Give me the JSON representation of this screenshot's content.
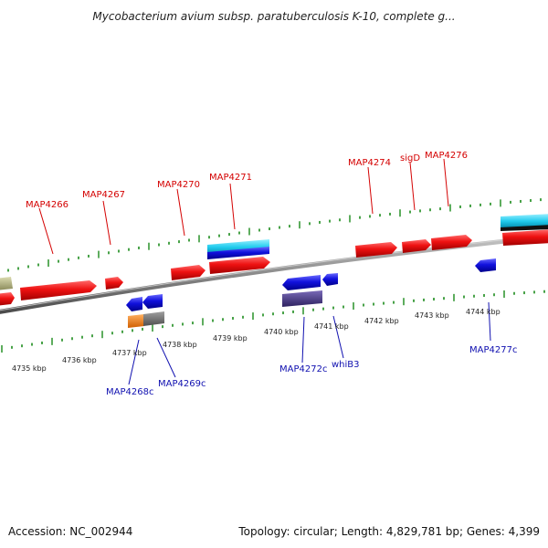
{
  "title": "Mycobacterium avium subsp. paratuberculosis K-10, complete g...",
  "footer": {
    "accession": "Accession: NC_002944",
    "topology": "Topology: circular; Length: 4,829,781 bp; Genes: 4,399"
  },
  "scale_labels": [
    "4735 kbp",
    "4736 kbp",
    "4737 kbp",
    "4738 kbp",
    "4739 kbp",
    "4740 kbp",
    "4741 kbp",
    "4742 kbp",
    "4743 kbp",
    "4744 kbp"
  ],
  "forward_gene_labels": [
    "MAP4266",
    "MAP4267",
    "MAP4270",
    "MAP4271",
    "MAP4274",
    "sigD",
    "MAP4276"
  ],
  "reverse_gene_labels": [
    "MAP4268c",
    "MAP4269c",
    "MAP4272c",
    "whiB3",
    "MAP4277c"
  ],
  "colors": {
    "forward_gene": "#ee1111",
    "reverse_gene": "#1111dd",
    "backbone": "#8a8a8a",
    "tick": "#1a8a1a",
    "rna_cyan": "#22ccee",
    "khaki": "#b8b888",
    "orange": "#ff8800",
    "gray_feature": "#707070",
    "purple_feature": "#4b3d8a"
  }
}
